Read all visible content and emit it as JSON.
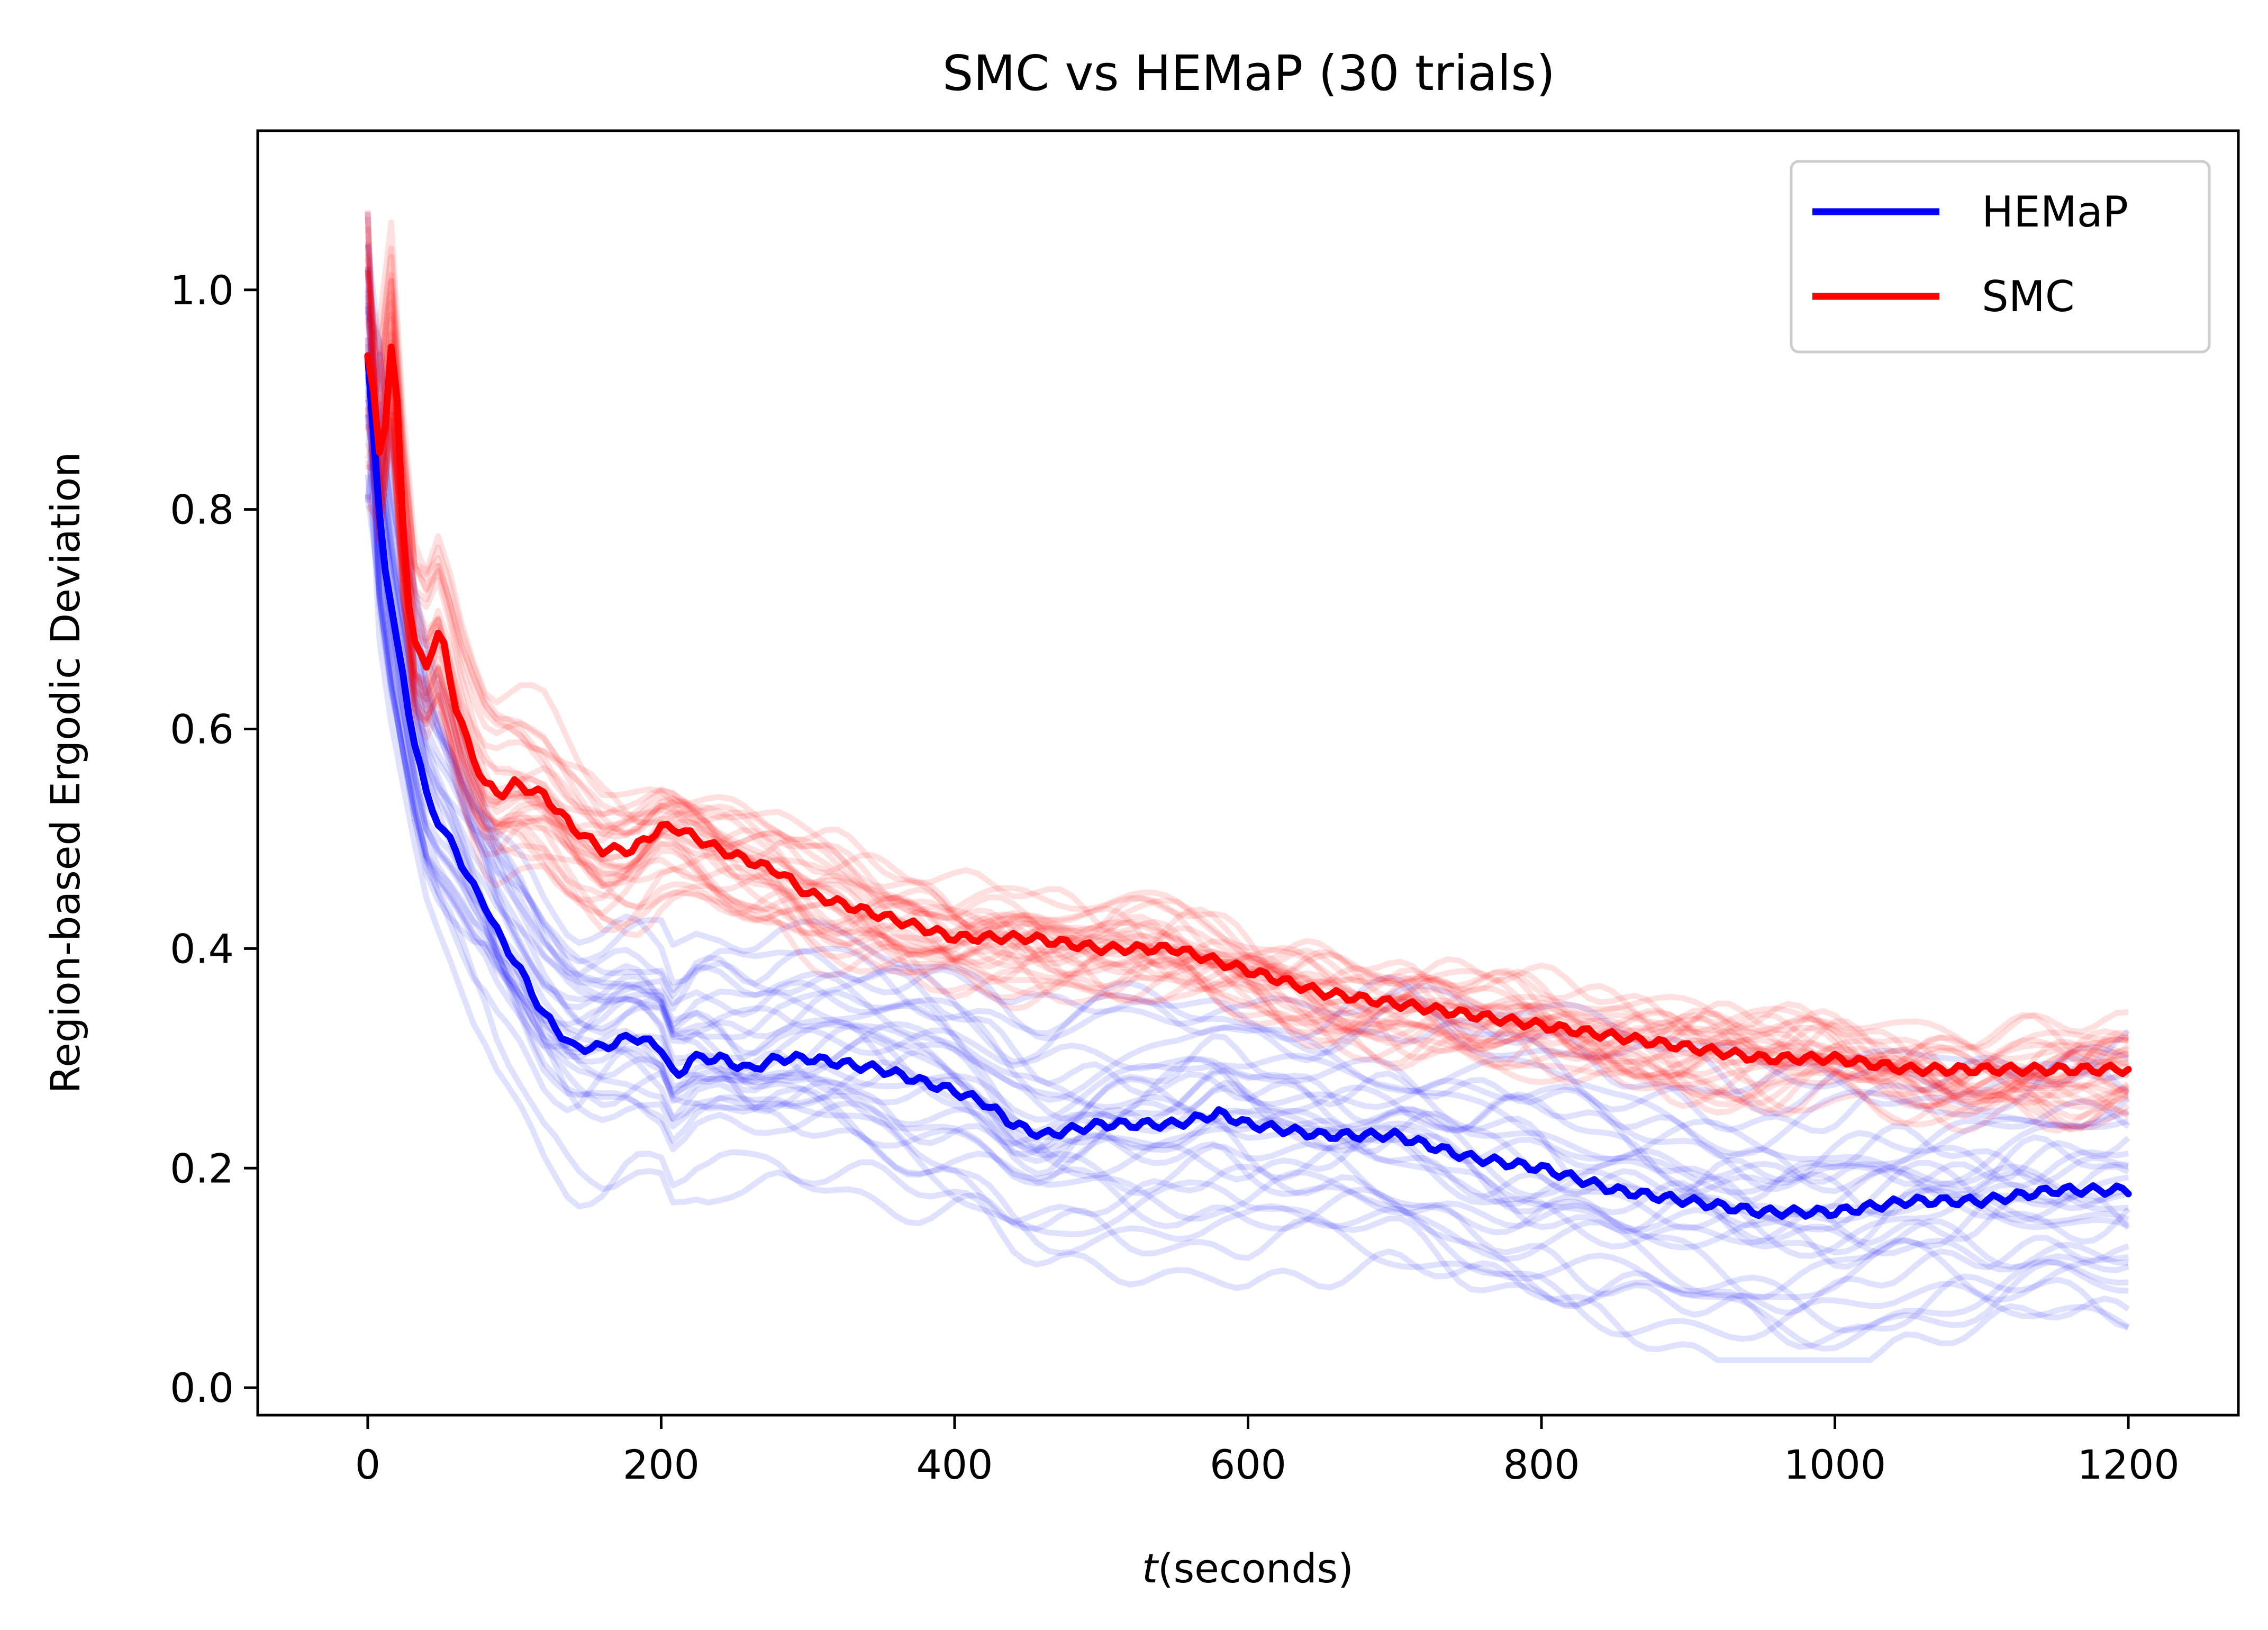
{
  "chart_data": {
    "type": "line",
    "title": "SMC vs HEMaP (30 trials)",
    "xlabel_italic": "t",
    "xlabel_rest": "(seconds)",
    "ylabel": "Region-based Ergodic Deviation",
    "xlim": [
      -75,
      1275
    ],
    "ylim": [
      -0.025,
      1.145
    ],
    "xticks": [
      0,
      200,
      400,
      600,
      800,
      1000,
      1200
    ],
    "xtick_labels": [
      "0",
      "200",
      "400",
      "600",
      "800",
      "1000",
      "1200"
    ],
    "yticks": [
      0.0,
      0.2,
      0.4,
      0.6,
      0.8,
      1.0
    ],
    "ytick_labels": [
      "0.0",
      "0.2",
      "0.4",
      "0.6",
      "0.8",
      "1.0"
    ],
    "grid": false,
    "legend_position": "top-right",
    "colors": {
      "HEMaP": "#0000ff",
      "SMC": "#ff0000"
    },
    "legend": [
      {
        "label": "HEMaP",
        "color": "#0000ff"
      },
      {
        "label": "SMC",
        "color": "#ff0000"
      }
    ],
    "trial_lines_per_method": 30,
    "series": [
      {
        "name": "HEMaP",
        "color": "#0000ff",
        "x": [
          0,
          5,
          10,
          20,
          30,
          40,
          50,
          60,
          70,
          80,
          90,
          100,
          120,
          140,
          160,
          180,
          200,
          210,
          220,
          240,
          260,
          280,
          300,
          350,
          400,
          420,
          440,
          460,
          500,
          550,
          580,
          600,
          650,
          700,
          750,
          800,
          850,
          900,
          950,
          1000,
          1050,
          1100,
          1150,
          1200
        ],
        "y": [
          0.94,
          0.85,
          0.76,
          0.68,
          0.6,
          0.54,
          0.51,
          0.49,
          0.46,
          0.44,
          0.41,
          0.39,
          0.34,
          0.31,
          0.31,
          0.32,
          0.31,
          0.28,
          0.3,
          0.3,
          0.29,
          0.3,
          0.3,
          0.29,
          0.27,
          0.26,
          0.24,
          0.23,
          0.24,
          0.24,
          0.25,
          0.24,
          0.23,
          0.23,
          0.21,
          0.2,
          0.18,
          0.17,
          0.16,
          0.16,
          0.17,
          0.17,
          0.18,
          0.18
        ]
      },
      {
        "name": "SMC",
        "color": "#ff0000",
        "x": [
          0,
          5,
          10,
          15,
          20,
          25,
          30,
          40,
          50,
          60,
          70,
          80,
          90,
          100,
          120,
          140,
          160,
          180,
          200,
          210,
          240,
          260,
          280,
          300,
          350,
          400,
          450,
          500,
          550,
          600,
          650,
          700,
          750,
          800,
          850,
          900,
          950,
          1000,
          1050,
          1100,
          1150,
          1200
        ],
        "y": [
          0.94,
          0.9,
          0.82,
          0.96,
          0.9,
          0.76,
          0.68,
          0.66,
          0.69,
          0.62,
          0.58,
          0.55,
          0.54,
          0.55,
          0.54,
          0.51,
          0.49,
          0.49,
          0.51,
          0.51,
          0.49,
          0.48,
          0.47,
          0.45,
          0.43,
          0.41,
          0.41,
          0.4,
          0.4,
          0.38,
          0.36,
          0.35,
          0.34,
          0.33,
          0.32,
          0.31,
          0.3,
          0.3,
          0.29,
          0.29,
          0.29,
          0.29
        ]
      }
    ]
  }
}
